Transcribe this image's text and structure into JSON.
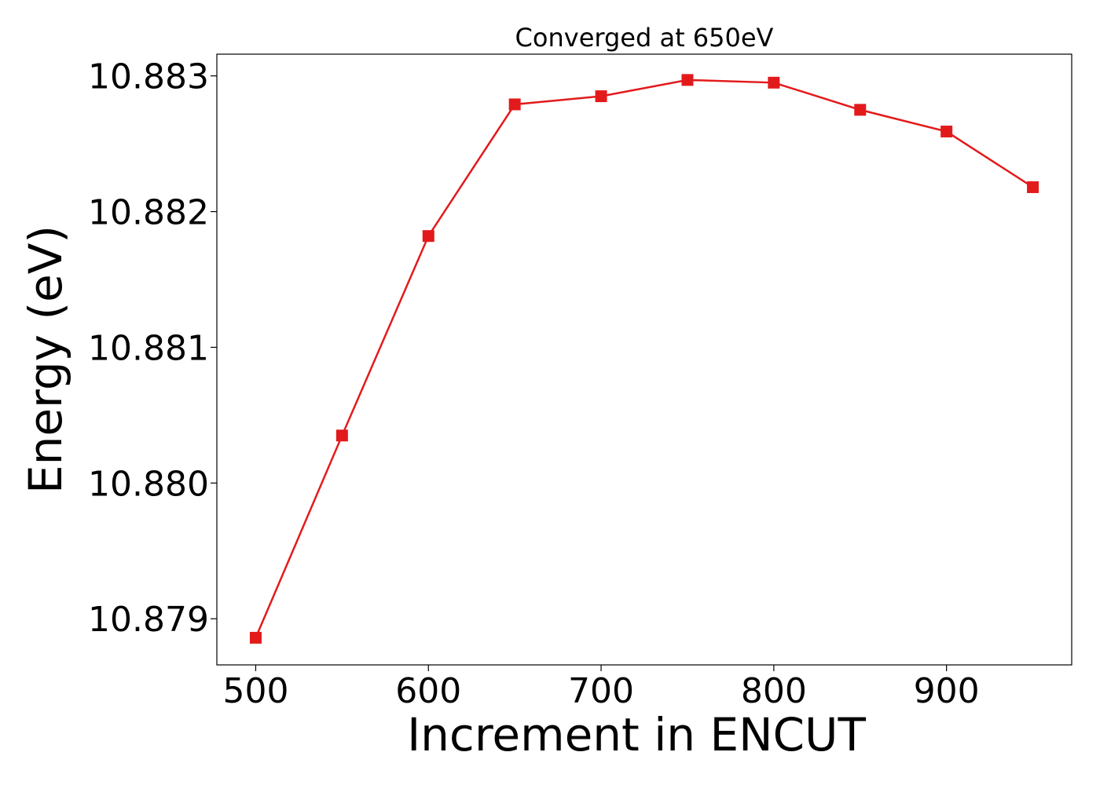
{
  "chart_data": {
    "type": "line",
    "title": "Converged at 650eV",
    "xlabel": "Increment in ENCUT",
    "ylabel": "Energy (eV)",
    "x": [
      500,
      550,
      600,
      650,
      700,
      750,
      800,
      850,
      900,
      950
    ],
    "series": [
      {
        "values": [
          10.87886,
          10.88035,
          10.88182,
          10.88279,
          10.88285,
          10.88297,
          10.88295,
          10.88275,
          10.88259,
          10.88218
        ],
        "color": "#e31a1c",
        "marker": "square"
      }
    ],
    "xlim": [
      477.5,
      972.5
    ],
    "ylim": [
      10.87866,
      10.88316
    ],
    "xticks": [
      "500",
      "600",
      "700",
      "800",
      "900"
    ],
    "yticks": [
      "10.879",
      "10.880",
      "10.881",
      "10.882",
      "10.883"
    ],
    "grid": false,
    "legend": "none"
  }
}
